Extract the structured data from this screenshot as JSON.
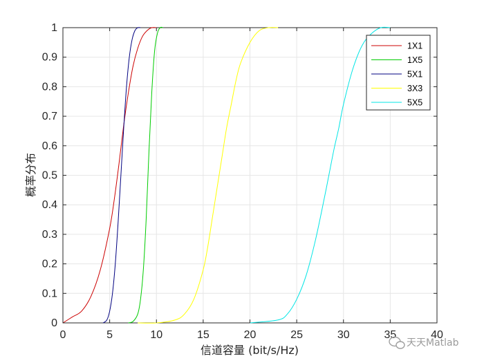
{
  "chart_data": {
    "type": "line",
    "title": "",
    "xlabel": "信道容量 (bit/s/Hz)",
    "ylabel": "概率分布",
    "xlim": [
      0,
      40
    ],
    "ylim": [
      0,
      1
    ],
    "xticks": [
      "0",
      "5",
      "10",
      "15",
      "20",
      "25",
      "30",
      "35",
      "40"
    ],
    "yticks": [
      "0",
      "0.1",
      "0.2",
      "0.3",
      "0.4",
      "0.5",
      "0.6",
      "0.7",
      "0.8",
      "0.9",
      "1"
    ],
    "grid": true,
    "legend_position": "top-right",
    "series": [
      {
        "name": "1X1",
        "color": "#cc0000",
        "x": [
          0,
          1,
          2,
          3,
          4,
          5,
          5.5,
          6,
          6.5,
          7,
          7.5,
          8,
          8.5,
          9,
          9.5,
          10
        ],
        "y": [
          0,
          0.02,
          0.04,
          0.09,
          0.18,
          0.32,
          0.42,
          0.54,
          0.67,
          0.78,
          0.87,
          0.93,
          0.97,
          0.99,
          1.0,
          1.0
        ]
      },
      {
        "name": "1X5",
        "color": "#00cc00",
        "x": [
          7,
          7.5,
          8,
          8.3,
          8.6,
          8.9,
          9.2,
          9.5,
          9.8,
          10.1,
          10.4,
          10.7
        ],
        "y": [
          0,
          0.005,
          0.03,
          0.08,
          0.18,
          0.35,
          0.58,
          0.78,
          0.92,
          0.98,
          1.0,
          1.0
        ]
      },
      {
        "name": "5X1",
        "color": "#000080",
        "x": [
          4.3,
          4.7,
          5,
          5.3,
          5.6,
          5.9,
          6.2,
          6.5,
          6.8,
          7.1,
          7.4,
          7.7,
          8,
          8.3
        ],
        "y": [
          0,
          0.01,
          0.04,
          0.1,
          0.2,
          0.34,
          0.5,
          0.66,
          0.8,
          0.9,
          0.96,
          0.99,
          1.0,
          1.0
        ]
      },
      {
        "name": "3X3",
        "color": "#ffff00",
        "x": [
          8,
          10,
          12,
          13,
          14,
          15,
          15.5,
          16,
          16.5,
          17,
          17.5,
          18,
          18.5,
          19,
          20,
          21,
          22,
          23
        ],
        "y": [
          0,
          0,
          0.01,
          0.03,
          0.08,
          0.18,
          0.26,
          0.36,
          0.46,
          0.56,
          0.66,
          0.74,
          0.82,
          0.88,
          0.95,
          0.99,
          1.0,
          1.0
        ]
      },
      {
        "name": "5X5",
        "color": "#00e5e5",
        "x": [
          20,
          23,
          24,
          25,
          26,
          27,
          28,
          28.5,
          29,
          29.5,
          30,
          31,
          32,
          33,
          34,
          35
        ],
        "y": [
          0,
          0.01,
          0.03,
          0.08,
          0.16,
          0.28,
          0.43,
          0.51,
          0.59,
          0.66,
          0.74,
          0.86,
          0.94,
          0.98,
          1.0,
          1.0
        ]
      }
    ]
  },
  "watermark": {
    "text": "天天Matlab",
    "icon": "chat-bubble-icon"
  }
}
